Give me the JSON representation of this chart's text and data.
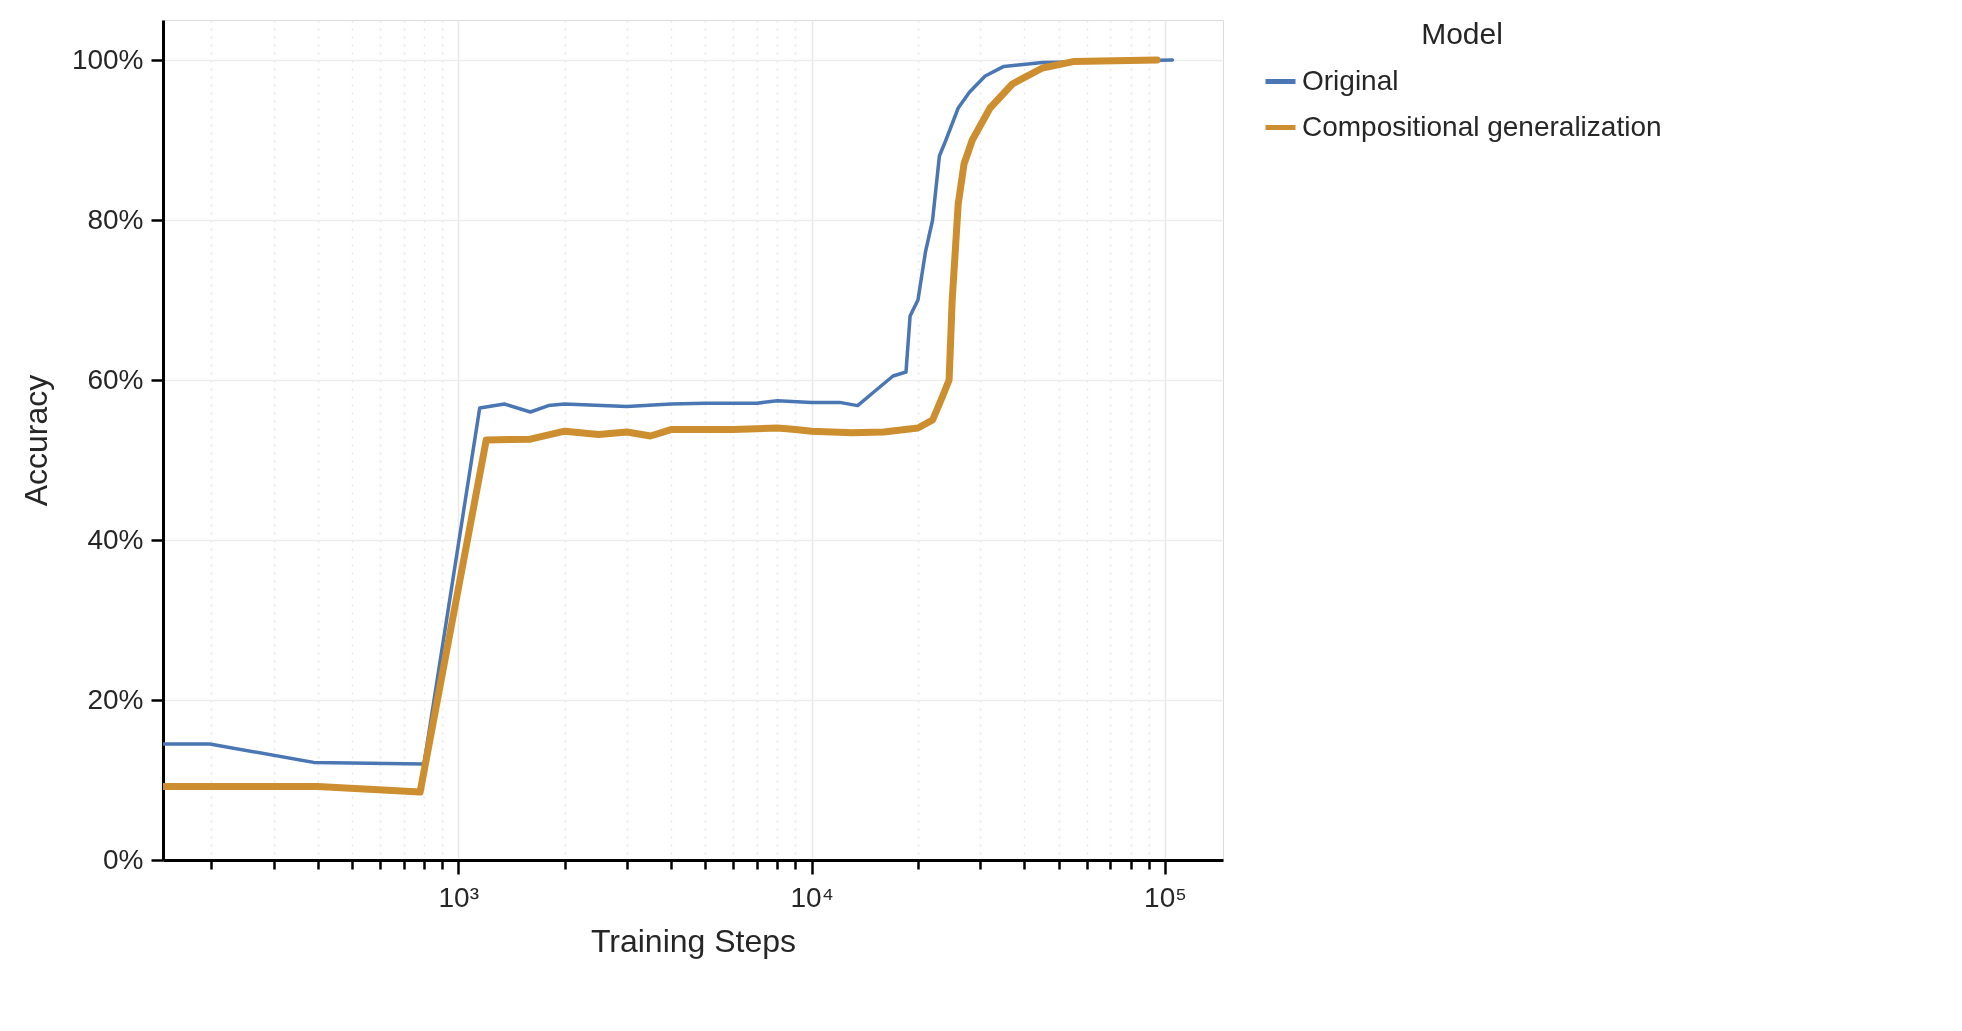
{
  "chart_data": {
    "type": "line",
    "xlabel": "Training Steps",
    "ylabel": "Accuracy",
    "legend_title": "Model",
    "legend": "right",
    "grid": true,
    "log": "x",
    "line_style": "solid",
    "marker": "none",
    "xlim": [
      146,
      146000
    ],
    "ylim": [
      0,
      105
    ],
    "xticks": [
      {
        "value": 200,
        "label": null
      },
      {
        "value": 300,
        "label": null
      },
      {
        "value": 400,
        "label": null
      },
      {
        "value": 500,
        "label": null
      },
      {
        "value": 600,
        "label": null
      },
      {
        "value": 700,
        "label": null
      },
      {
        "value": 800,
        "label": null
      },
      {
        "value": 900,
        "label": null
      },
      {
        "value": 1000,
        "label": "10³"
      },
      {
        "value": 2000,
        "label": null
      },
      {
        "value": 3000,
        "label": null
      },
      {
        "value": 4000,
        "label": null
      },
      {
        "value": 5000,
        "label": null
      },
      {
        "value": 6000,
        "label": null
      },
      {
        "value": 7000,
        "label": null
      },
      {
        "value": 8000,
        "label": null
      },
      {
        "value": 9000,
        "label": null
      },
      {
        "value": 10000,
        "label": "10⁴"
      },
      {
        "value": 20000,
        "label": null
      },
      {
        "value": 30000,
        "label": null
      },
      {
        "value": 40000,
        "label": null
      },
      {
        "value": 50000,
        "label": null
      },
      {
        "value": 60000,
        "label": null
      },
      {
        "value": 70000,
        "label": null
      },
      {
        "value": 80000,
        "label": null
      },
      {
        "value": 90000,
        "label": null
      },
      {
        "value": 100000,
        "label": "10⁵"
      }
    ],
    "yticks": [
      {
        "value": 0,
        "label": "0%"
      },
      {
        "value": 20,
        "label": "20%"
      },
      {
        "value": 40,
        "label": "40%"
      },
      {
        "value": 60,
        "label": "60%"
      },
      {
        "value": 80,
        "label": "80%"
      },
      {
        "value": 100,
        "label": "100%"
      }
    ],
    "series": [
      {
        "name": "Original",
        "color": "#4a76b4",
        "x": [
          146,
          198,
          390,
          800,
          1150,
          1350,
          1600,
          1800,
          2000,
          3000,
          4000,
          5000,
          7000,
          8000,
          10000,
          12000,
          13500,
          15000,
          17000,
          18500,
          19000,
          20000,
          21000,
          22000,
          23000,
          24000,
          26000,
          28000,
          31000,
          35000,
          45000,
          105000
        ],
        "values": [
          14.5,
          14.5,
          12.2,
          12,
          56.5,
          57,
          56,
          56.8,
          57,
          56.7,
          57,
          57.1,
          57.1,
          57.4,
          57.2,
          57.2,
          56.8,
          58.5,
          60.5,
          61,
          68,
          70,
          76,
          80,
          88,
          90,
          94,
          96,
          98,
          99.2,
          99.7,
          100
        ]
      },
      {
        "name": "Compositional generalization",
        "color": "#cc8e2e",
        "x": [
          146,
          400,
          780,
          1200,
          1600,
          2000,
          2500,
          3000,
          3500,
          4000,
          6000,
          8000,
          9000,
          10000,
          13000,
          16000,
          20000,
          22000,
          23500,
          24500,
          25000,
          26000,
          27000,
          28500,
          32000,
          37000,
          45000,
          55000,
          95000
        ],
        "values": [
          9.2,
          9.2,
          8.5,
          52.5,
          52.6,
          53.6,
          53.2,
          53.5,
          53,
          53.8,
          53.8,
          54,
          53.8,
          53.6,
          53.4,
          53.5,
          54,
          55,
          58,
          60,
          70,
          82,
          87,
          90,
          94,
          97,
          99,
          99.8,
          100
        ]
      }
    ]
  }
}
